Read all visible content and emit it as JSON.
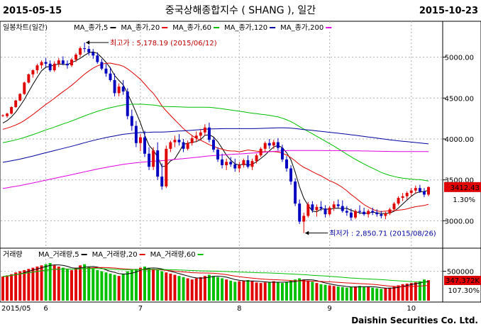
{
  "header": {
    "start_date": "2015-05-15",
    "title": "중국상해종합지수 ( SHANG ), 일간",
    "end_date": "2015-10-23"
  },
  "footer": {
    "company": "Daishin Securities Co. Ltd."
  },
  "chart_data": [
    {
      "type": "candlestick",
      "panel_label": "일봉차트(일간)",
      "legend": [
        {
          "name": "MA_종가,5",
          "color": "#000000"
        },
        {
          "name": "MA_종가,20",
          "color": "#e00000"
        },
        {
          "name": "MA_종가,60",
          "color": "#00c000"
        },
        {
          "name": "MA_종가,120",
          "color": "#0000a0"
        },
        {
          "name": "MA_종가,200",
          "color": "#e000e0"
        }
      ],
      "ylim": [
        2700,
        5300
      ],
      "yticks": [
        "5000.00",
        "4500.00",
        "4000.00",
        "3500.00",
        "3000.00"
      ],
      "ytick_values": [
        5000,
        4500,
        4000,
        3500,
        3000
      ],
      "current_value": "3412.43",
      "change_pct": "1.30%",
      "colors": {
        "up": "#e00000",
        "down": "#0000c0",
        "price_box": "#e00000"
      },
      "annotations": {
        "high": {
          "label": "최고가 : 5,178.19 (2015/06/12)",
          "value": 5178.19,
          "date": "2015/06/12"
        },
        "low": {
          "label": "최저가 : 2,850.71 (2015/08/26)",
          "value": 2850.71,
          "date": "2015/08/26"
        }
      },
      "ohlc": [
        [
          4290,
          4300,
          4270,
          4290
        ],
        [
          4280,
          4320,
          4260,
          4310
        ],
        [
          4310,
          4400,
          4300,
          4390
        ],
        [
          4390,
          4480,
          4380,
          4470
        ],
        [
          4470,
          4560,
          4460,
          4550
        ],
        [
          4550,
          4700,
          4540,
          4690
        ],
        [
          4690,
          4800,
          4680,
          4790
        ],
        [
          4790,
          4850,
          4750,
          4840
        ],
        [
          4840,
          4920,
          4800,
          4900
        ],
        [
          4900,
          4960,
          4860,
          4940
        ],
        [
          4940,
          4990,
          4880,
          4920
        ],
        [
          4920,
          4960,
          4820,
          4840
        ],
        [
          4840,
          4950,
          4820,
          4920
        ],
        [
          4920,
          4990,
          4880,
          4960
        ],
        [
          4960,
          5010,
          4900,
          4920
        ],
        [
          4920,
          4960,
          4860,
          4900
        ],
        [
          4900,
          4990,
          4880,
          4970
        ],
        [
          4970,
          5050,
          4940,
          5030
        ],
        [
          5030,
          5130,
          5000,
          5110
        ],
        [
          5110,
          5178,
          5060,
          5100
        ],
        [
          5100,
          5140,
          5020,
          5060
        ],
        [
          5060,
          5100,
          4980,
          5020
        ],
        [
          5020,
          5060,
          4920,
          4940
        ],
        [
          4940,
          4980,
          4840,
          4860
        ],
        [
          4860,
          4920,
          4760,
          4800
        ],
        [
          4800,
          4880,
          4700,
          4720
        ],
        [
          4720,
          4800,
          4520,
          4560
        ],
        [
          4560,
          4680,
          4520,
          4640
        ],
        [
          4640,
          4720,
          4540,
          4580
        ],
        [
          4580,
          4620,
          4240,
          4280
        ],
        [
          4280,
          4360,
          4100,
          4160
        ],
        [
          4160,
          4220,
          3900,
          3950
        ],
        [
          3950,
          4060,
          3850,
          4020
        ],
        [
          4020,
          4100,
          3780,
          3820
        ],
        [
          3820,
          3900,
          3620,
          3660
        ],
        [
          3660,
          3900,
          3620,
          3860
        ],
        [
          3860,
          3960,
          3500,
          3540
        ],
        [
          3540,
          3700,
          3380,
          3420
        ],
        [
          3420,
          3920,
          3400,
          3880
        ],
        [
          3880,
          3980,
          3840,
          3960
        ],
        [
          3960,
          4040,
          3900,
          3990
        ],
        [
          3990,
          4060,
          3920,
          3960
        ],
        [
          3960,
          4000,
          3840,
          3880
        ],
        [
          3880,
          3980,
          3860,
          3950
        ],
        [
          3950,
          4040,
          3920,
          4010
        ],
        [
          4010,
          4090,
          3960,
          4040
        ],
        [
          4040,
          4120,
          4000,
          4080
        ],
        [
          4080,
          4180,
          4040,
          4140
        ],
        [
          4140,
          4200,
          3960,
          3990
        ],
        [
          3990,
          4020,
          3840,
          3870
        ],
        [
          3870,
          3900,
          3720,
          3750
        ],
        [
          3750,
          3820,
          3640,
          3680
        ],
        [
          3680,
          3760,
          3620,
          3720
        ],
        [
          3720,
          3780,
          3660,
          3690
        ],
        [
          3690,
          3760,
          3600,
          3640
        ],
        [
          3640,
          3720,
          3590,
          3680
        ],
        [
          3680,
          3760,
          3650,
          3740
        ],
        [
          3740,
          3800,
          3640,
          3660
        ],
        [
          3660,
          3760,
          3620,
          3730
        ],
        [
          3730,
          3820,
          3700,
          3800
        ],
        [
          3800,
          3900,
          3780,
          3880
        ],
        [
          3880,
          3970,
          3840,
          3950
        ],
        [
          3950,
          4000,
          3880,
          3920
        ],
        [
          3920,
          3990,
          3880,
          3960
        ],
        [
          3960,
          4010,
          3860,
          3890
        ],
        [
          3890,
          3930,
          3720,
          3750
        ],
        [
          3750,
          3790,
          3600,
          3640
        ],
        [
          3640,
          3680,
          3440,
          3480
        ],
        [
          3480,
          3520,
          3180,
          3210
        ],
        [
          3210,
          3260,
          2960,
          2990
        ],
        [
          2990,
          3100,
          2850,
          3060
        ],
        [
          3060,
          3230,
          3040,
          3200
        ],
        [
          3200,
          3240,
          3100,
          3130
        ],
        [
          3130,
          3200,
          3050,
          3170
        ],
        [
          3170,
          3240,
          3120,
          3150
        ],
        [
          3150,
          3190,
          3040,
          3080
        ],
        [
          3080,
          3180,
          3060,
          3160
        ],
        [
          3160,
          3240,
          3120,
          3200
        ],
        [
          3200,
          3260,
          3150,
          3180
        ],
        [
          3180,
          3250,
          3100,
          3120
        ],
        [
          3120,
          3180,
          3060,
          3100
        ],
        [
          3100,
          3150,
          3000,
          3040
        ],
        [
          3040,
          3140,
          3020,
          3120
        ],
        [
          3120,
          3190,
          3080,
          3110
        ],
        [
          3110,
          3160,
          3060,
          3080
        ],
        [
          3080,
          3140,
          3040,
          3120
        ],
        [
          3120,
          3160,
          3070,
          3100
        ],
        [
          3100,
          3140,
          3050,
          3080
        ],
        [
          3080,
          3120,
          3030,
          3060
        ],
        [
          3060,
          3110,
          3020,
          3090
        ],
        [
          3090,
          3160,
          3070,
          3140
        ],
        [
          3140,
          3230,
          3120,
          3210
        ],
        [
          3210,
          3300,
          3190,
          3280
        ],
        [
          3280,
          3340,
          3240,
          3300
        ],
        [
          3300,
          3360,
          3260,
          3340
        ],
        [
          3340,
          3400,
          3300,
          3370
        ],
        [
          3370,
          3430,
          3330,
          3400
        ],
        [
          3400,
          3440,
          3340,
          3360
        ],
        [
          3360,
          3400,
          3290,
          3320
        ],
        [
          3320,
          3420,
          3300,
          3412
        ]
      ]
    },
    {
      "type": "bar",
      "panel_label": "거래량",
      "legend": [
        {
          "name": "MA_거래량,5",
          "color": "#000000"
        },
        {
          "name": "MA_거래량,20",
          "color": "#e00000"
        },
        {
          "name": "MA_거래량,60",
          "color": "#00c000"
        }
      ],
      "ylim": [
        0,
        700000
      ],
      "ytick_label": "500000",
      "ytick_value": 500000,
      "current_value": "347,372K",
      "change_pct": "107.30%",
      "colors": {
        "up": "#e00000",
        "down": "#00c000",
        "price_box": "#e00000"
      },
      "x_labels": [
        {
          "label": "2015/05",
          "index": 0
        },
        {
          "label": "6",
          "index": 10
        },
        {
          "label": "7",
          "index": 32
        },
        {
          "label": "8",
          "index": 55
        },
        {
          "label": "9",
          "index": 76
        },
        {
          "label": "10",
          "index": 95
        }
      ],
      "volumes": [
        410000,
        430000,
        450000,
        480000,
        500000,
        520000,
        540000,
        560000,
        580000,
        600000,
        620000,
        640000,
        600000,
        580000,
        560000,
        540000,
        520000,
        560000,
        600000,
        620000,
        580000,
        540000,
        520000,
        500000,
        480000,
        460000,
        440000,
        420000,
        460000,
        500000,
        520000,
        540000,
        560000,
        580000,
        560000,
        540000,
        520000,
        500000,
        480000,
        460000,
        440000,
        420000,
        400000,
        380000,
        360000,
        380000,
        400000,
        420000,
        440000,
        420000,
        400000,
        380000,
        360000,
        340000,
        320000,
        330000,
        340000,
        350000,
        330000,
        310000,
        300000,
        310000,
        320000,
        330000,
        310000,
        300000,
        320000,
        340000,
        360000,
        380000,
        360000,
        340000,
        320000,
        300000,
        280000,
        270000,
        260000,
        250000,
        240000,
        230000,
        220000,
        230000,
        240000,
        250000,
        240000,
        230000,
        220000,
        210000,
        200000,
        210000,
        220000,
        240000,
        260000,
        280000,
        290000,
        300000,
        310000,
        330000,
        360000,
        347372
      ]
    }
  ]
}
